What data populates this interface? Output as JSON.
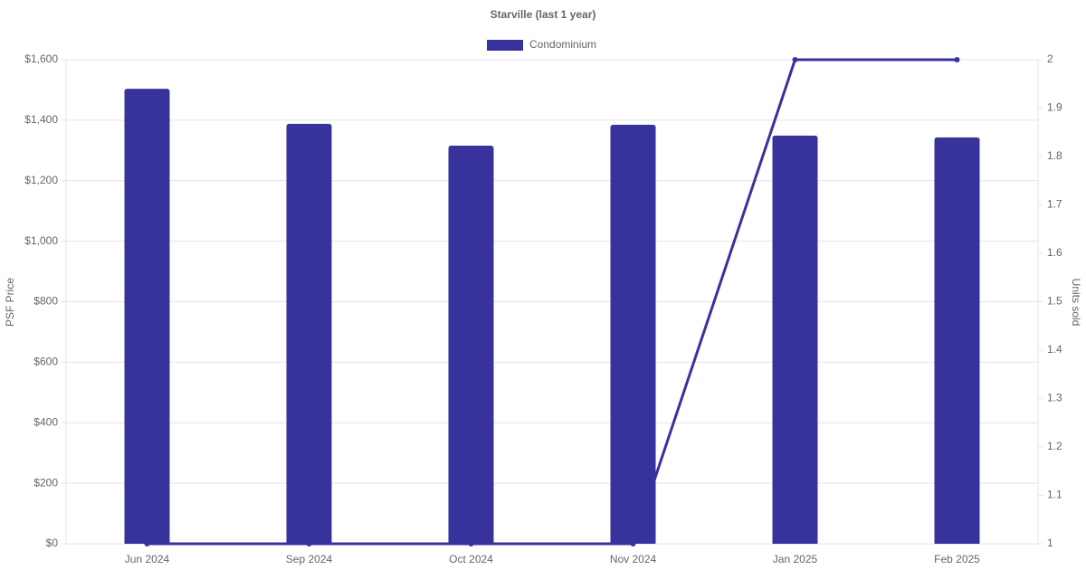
{
  "chart_data": {
    "type": "bar-line",
    "title": "Starville (last 1 year)",
    "categories": [
      "Jun 2024",
      "Sep 2024",
      "Oct 2024",
      "Nov 2024",
      "Jan 2025",
      "Feb 2025"
    ],
    "series": [
      {
        "name": "Condominium",
        "type": "bar",
        "color": "#38339c",
        "values": [
          1504,
          1388,
          1316,
          1385,
          1349,
          1343
        ]
      },
      {
        "type": "line",
        "axis": "y2",
        "color": "#38339c",
        "values": [
          1,
          1,
          1,
          1,
          2,
          2
        ]
      }
    ],
    "ylabel": "PSF Price",
    "y2label": "Units sold",
    "ylim": [
      0,
      1600
    ],
    "yticks": [
      {
        "value": 0,
        "label": "$0"
      },
      {
        "value": 200,
        "label": "$200"
      },
      {
        "value": 400,
        "label": "$400"
      },
      {
        "value": 600,
        "label": "$600"
      },
      {
        "value": 800,
        "label": "$800"
      },
      {
        "value": 1000,
        "label": "$1,000"
      },
      {
        "value": 1200,
        "label": "$1,200"
      },
      {
        "value": 1400,
        "label": "$1,400"
      },
      {
        "value": 1600,
        "label": "$1,600"
      }
    ],
    "y2lim": [
      1,
      2
    ],
    "y2ticks": [
      1,
      1.1,
      1.2,
      1.3,
      1.4,
      1.5,
      1.6,
      1.7,
      1.8,
      1.9,
      2
    ],
    "grid": true,
    "legend": "top"
  }
}
